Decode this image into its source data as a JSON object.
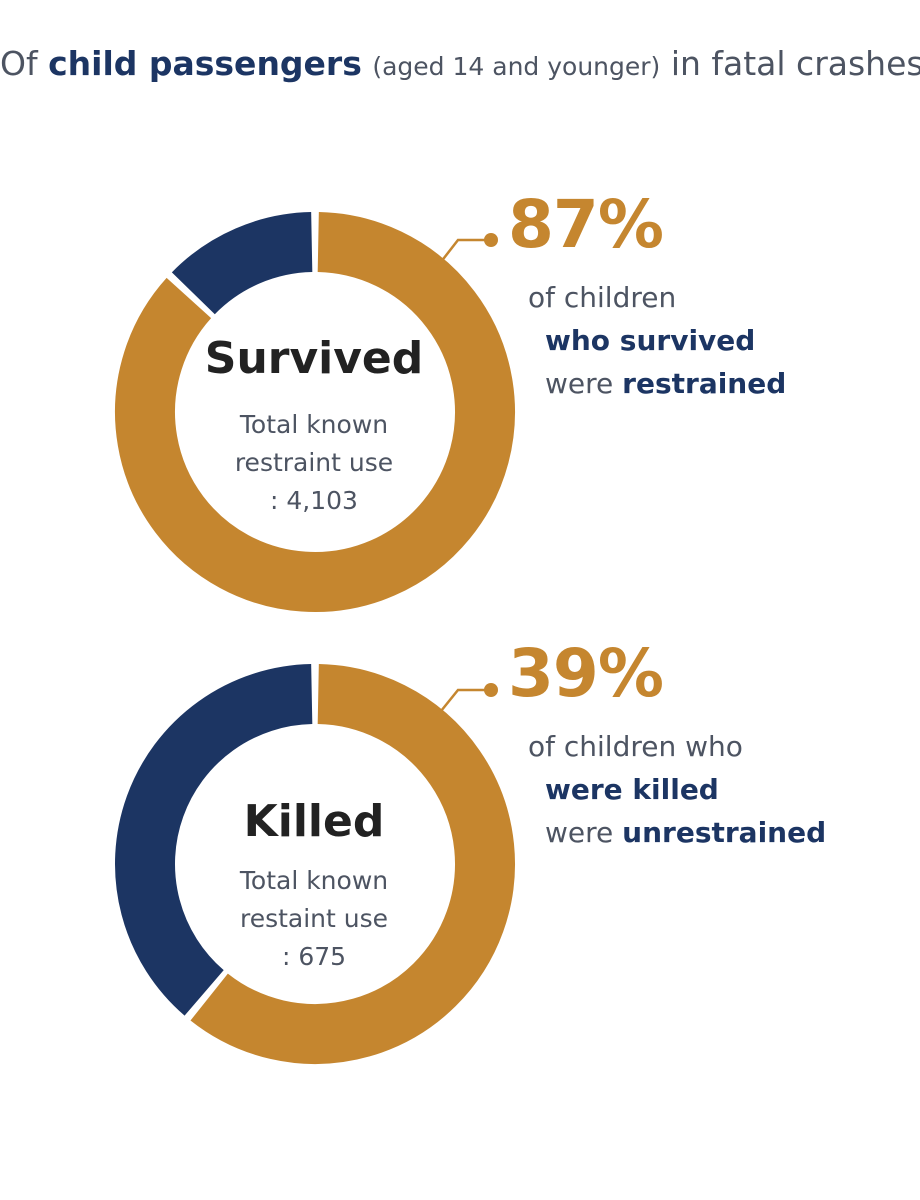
{
  "headline": {
    "prefix": "Of",
    "strong": "child passengers",
    "small": "(aged 14 and younger)",
    "suffix": "in fatal crashes:"
  },
  "colors": {
    "primary": "#c5862f",
    "secondary": "#1c3563",
    "text": "#4d5462"
  },
  "chart_data": [
    {
      "type": "pie",
      "center_label": "Survived",
      "center_sub": [
        "Total known",
        "restraint use",
        ": 4,103"
      ],
      "total": 4103,
      "slices": [
        {
          "value": 87,
          "color": "#c5862f"
        },
        {
          "value": 13,
          "color": "#1c3563"
        }
      ],
      "percent_label": "87%",
      "callout": {
        "line1": "of children",
        "line2": "who survived",
        "line3_prefix": "were",
        "line3_strong": "restrained"
      }
    },
    {
      "type": "pie",
      "center_label": "Killed",
      "center_sub": [
        "Total known",
        "restaint use",
        ": 675"
      ],
      "total": 675,
      "slices": [
        {
          "value": 61,
          "color": "#c5862f"
        },
        {
          "value": 39,
          "color": "#1c3563"
        }
      ],
      "percent_label": "39%",
      "callout": {
        "line1": "of children who",
        "line2": "were killed",
        "line3_prefix": "were",
        "line3_strong": "unrestrained"
      }
    }
  ]
}
